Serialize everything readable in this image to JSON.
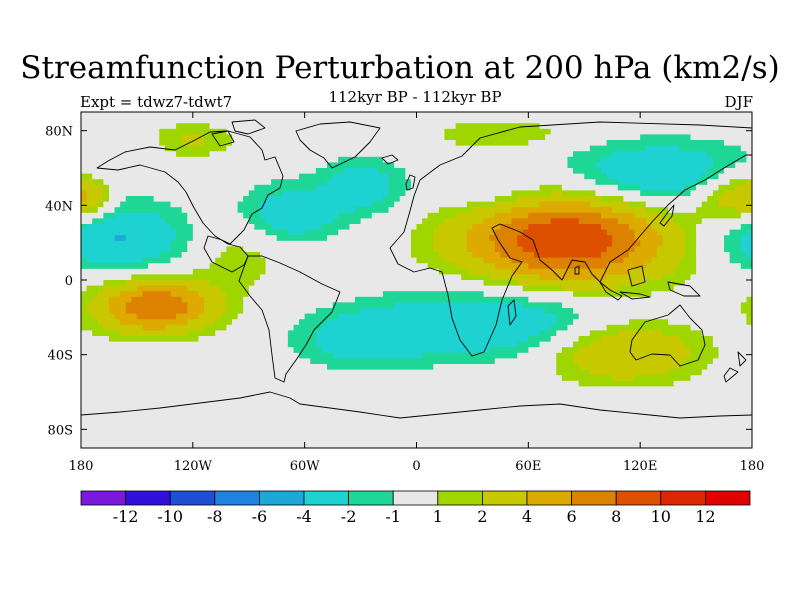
{
  "header": {
    "title": "Streamfunction Perturbation at 200 hPa (km2/s)",
    "subtitle": "112kyr BP - 112kyr BP",
    "left_string": "Expt = tdwz7-tdwt7",
    "right_string": "DJF"
  },
  "map": {
    "lon_range": [
      -180,
      180
    ],
    "lat_range": [
      -90,
      90
    ],
    "projection": "cylindrical equidistant",
    "missing_fill": "#e8e8e8",
    "coastline_color": "#000000",
    "lat_ticks": [
      {
        "value": 80,
        "label": "80N"
      },
      {
        "value": 40,
        "label": "40N"
      },
      {
        "value": 0,
        "label": "0"
      },
      {
        "value": -40,
        "label": "40S"
      },
      {
        "value": -80,
        "label": "80S"
      }
    ],
    "lon_ticks": [
      {
        "value": -180,
        "label": "180"
      },
      {
        "value": -120,
        "label": "120W"
      },
      {
        "value": -60,
        "label": "60W"
      },
      {
        "value": 0,
        "label": "0"
      },
      {
        "value": 60,
        "label": "60E"
      },
      {
        "value": 120,
        "label": "120E"
      },
      {
        "value": 180,
        "label": "180"
      }
    ],
    "anomaly_centers": [
      {
        "lon": 80,
        "lat": 22,
        "amp": 10,
        "sx": 40,
        "sy": 18
      },
      {
        "lon": -140,
        "lat": -14,
        "amp": 8,
        "sx": 22,
        "sy": 10
      },
      {
        "lon": 110,
        "lat": -38,
        "amp": 4.5,
        "sx": 30,
        "sy": 12
      },
      {
        "lon": 170,
        "lat": 45,
        "amp": 4.5,
        "sx": 16,
        "sy": 10
      },
      {
        "lon": -175,
        "lat": 45,
        "amp": 3,
        "sx": 8,
        "sy": 8
      },
      {
        "lon": -120,
        "lat": 75,
        "amp": 2.2,
        "sx": 16,
        "sy": 7
      },
      {
        "lon": 45,
        "lat": 78,
        "amp": 2,
        "sx": 26,
        "sy": 6
      },
      {
        "lon": -95,
        "lat": 17,
        "amp": 2,
        "sx": 22,
        "sy": 15
      },
      {
        "lon": -160,
        "lat": 22,
        "amp": -4.2,
        "sx": 30,
        "sy": 13
      },
      {
        "lon": 130,
        "lat": 55,
        "amp": -4.5,
        "sx": 40,
        "sy": 13
      },
      {
        "lon": 45,
        "lat": -22,
        "amp": -4.2,
        "sx": 45,
        "sy": 14
      },
      {
        "lon": -70,
        "lat": 34,
        "amp": -3.6,
        "sx": 20,
        "sy": 12
      },
      {
        "lon": -28,
        "lat": 50,
        "amp": -3,
        "sx": 17,
        "sy": 11
      },
      {
        "lon": -30,
        "lat": -32,
        "amp": -2.8,
        "sx": 25,
        "sy": 11
      },
      {
        "lon": 40,
        "lat": 45,
        "amp": -1.8,
        "sx": 22,
        "sy": 9
      }
    ]
  },
  "colorbar": {
    "levels": [
      "-12",
      "-10",
      "-8",
      "-6",
      "-4",
      "-2",
      "-1",
      "1",
      "2",
      "4",
      "6",
      "8",
      "10",
      "12"
    ],
    "colors": [
      "#7a19dc",
      "#3210dc",
      "#1e50d6",
      "#1e82e0",
      "#1ea8d8",
      "#1ed2d2",
      "#1ed696",
      "#e8e8e8",
      "#a0d600",
      "#c8c800",
      "#dcaa00",
      "#dc8200",
      "#dc5000",
      "#dc2800",
      "#e00000"
    ]
  }
}
